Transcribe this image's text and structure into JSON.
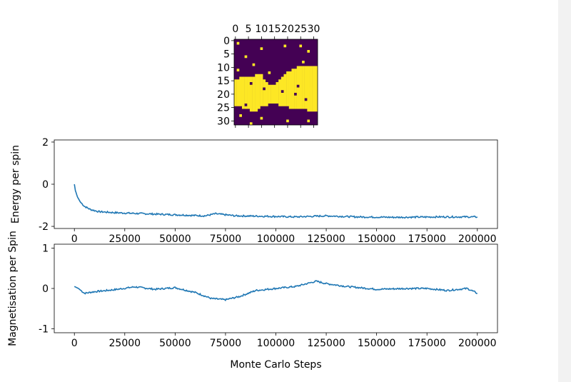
{
  "chart_data": [
    {
      "type": "heatmap",
      "title": "",
      "grid_size": 32,
      "x_ticks": [
        "0",
        "5",
        "10",
        "15",
        "20",
        "25",
        "30"
      ],
      "y_ticks": [
        "0",
        "5",
        "10",
        "15",
        "20",
        "25",
        "30"
      ],
      "x_tick_position": "top",
      "colors": {
        "low": "#440154",
        "high": "#fde725"
      },
      "region_description": "spin-up domain (yellow) spanning roughly rows 10-27 with wavy boundaries; spin-down (purple) elsewhere; scattered isolated flipped spins",
      "upper_boundary_rows": [
        15,
        15,
        14,
        14,
        14,
        14,
        14,
        14,
        13,
        13,
        13,
        15,
        16,
        17,
        17,
        17,
        16,
        15,
        14,
        13,
        12,
        12,
        11,
        11,
        10,
        10,
        10,
        10,
        10,
        10,
        10,
        10
      ],
      "lower_boundary_rows": [
        25,
        25,
        25,
        26,
        26,
        26,
        27,
        27,
        27,
        26,
        25,
        25,
        25,
        24,
        24,
        24,
        24,
        25,
        25,
        25,
        25,
        26,
        26,
        26,
        26,
        26,
        26,
        26,
        27,
        27,
        27,
        27
      ],
      "isolated_up_spins": [
        [
          1,
          1
        ],
        [
          2,
          19
        ],
        [
          3,
          10
        ],
        [
          4,
          28
        ],
        [
          2,
          25
        ],
        [
          6,
          4
        ],
        [
          8,
          26
        ],
        [
          11,
          1
        ],
        [
          9,
          7
        ],
        [
          12,
          13
        ],
        [
          13,
          28
        ],
        [
          14,
          3
        ],
        [
          18,
          29
        ],
        [
          20,
          19
        ],
        [
          22,
          9
        ],
        [
          28,
          2
        ],
        [
          29,
          10
        ],
        [
          30,
          20
        ],
        [
          30,
          28
        ],
        [
          31,
          6
        ]
      ],
      "isolated_down_spins": [
        [
          16,
          6
        ],
        [
          18,
          11
        ],
        [
          20,
          23
        ],
        [
          22,
          27
        ],
        [
          24,
          4
        ],
        [
          19,
          18
        ],
        [
          17,
          24
        ]
      ]
    },
    {
      "type": "line",
      "xlabel": "",
      "ylabel": "Energy per spin",
      "xlim": [
        -10000,
        210000
      ],
      "ylim": [
        -2.1,
        2.1
      ],
      "x_ticks": [
        0,
        25000,
        50000,
        75000,
        100000,
        125000,
        150000,
        175000,
        200000
      ],
      "y_ticks": [
        -2,
        0,
        2
      ],
      "color": "#1f77b4",
      "points": [
        [
          0,
          0.0
        ],
        [
          500,
          -0.3
        ],
        [
          1500,
          -0.6
        ],
        [
          3000,
          -0.85
        ],
        [
          5000,
          -1.05
        ],
        [
          8000,
          -1.2
        ],
        [
          12000,
          -1.3
        ],
        [
          20000,
          -1.35
        ],
        [
          35000,
          -1.4
        ],
        [
          50000,
          -1.45
        ],
        [
          65000,
          -1.5
        ],
        [
          70000,
          -1.4
        ],
        [
          80000,
          -1.5
        ],
        [
          95000,
          -1.52
        ],
        [
          110000,
          -1.55
        ],
        [
          125000,
          -1.5
        ],
        [
          140000,
          -1.55
        ],
        [
          160000,
          -1.57
        ],
        [
          180000,
          -1.55
        ],
        [
          200000,
          -1.55
        ]
      ]
    },
    {
      "type": "line",
      "xlabel": "Monte Carlo Steps",
      "ylabel": "Magnetisation per Spin",
      "xlim": [
        -10000,
        210000
      ],
      "ylim": [
        -1.1,
        1.1
      ],
      "x_ticks": [
        0,
        25000,
        50000,
        75000,
        100000,
        125000,
        150000,
        175000,
        200000
      ],
      "y_ticks": [
        -1,
        0,
        1
      ],
      "color": "#1f77b4",
      "points": [
        [
          0,
          0.05
        ],
        [
          2000,
          0.0
        ],
        [
          5000,
          -0.12
        ],
        [
          10000,
          -0.08
        ],
        [
          20000,
          -0.03
        ],
        [
          30000,
          0.04
        ],
        [
          40000,
          -0.02
        ],
        [
          50000,
          0.02
        ],
        [
          60000,
          -0.1
        ],
        [
          68000,
          -0.25
        ],
        [
          75000,
          -0.28
        ],
        [
          82000,
          -0.2
        ],
        [
          90000,
          -0.05
        ],
        [
          100000,
          0.0
        ],
        [
          110000,
          0.05
        ],
        [
          120000,
          0.18
        ],
        [
          125000,
          0.12
        ],
        [
          135000,
          0.05
        ],
        [
          150000,
          -0.02
        ],
        [
          165000,
          0.0
        ],
        [
          175000,
          0.0
        ],
        [
          185000,
          -0.05
        ],
        [
          195000,
          0.0
        ],
        [
          200000,
          -0.12
        ]
      ]
    }
  ]
}
